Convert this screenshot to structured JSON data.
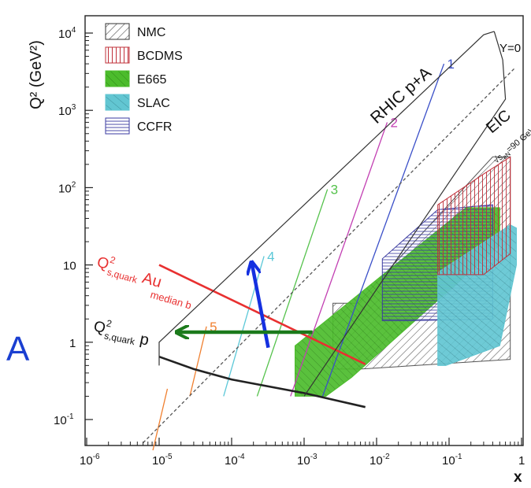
{
  "panel_label": "A",
  "colors": {
    "nmc": "#555555",
    "bcdms": "#c0303a",
    "e665": "#4cbc2c",
    "slac": "#62c6d2",
    "ccfr": "#3a3aa0",
    "au": "#e83030",
    "p": "#222222",
    "blue_arrow": "#1530e0",
    "green_arrow": "#1b7a1b"
  },
  "chart_data": {
    "type": "scatter",
    "title": "",
    "xlabel": "x",
    "ylabel": "Q² (GeV²)",
    "xscale": "log",
    "yscale": "log",
    "xlim": [
      1e-06,
      1
    ],
    "ylim": [
      0.05,
      15000
    ],
    "x_ticks": [
      {
        "base": "10",
        "exp": "-6",
        "value": 1e-06
      },
      {
        "base": "10",
        "exp": "-5",
        "value": 1e-05
      },
      {
        "base": "10",
        "exp": "-4",
        "value": 0.0001
      },
      {
        "base": "10",
        "exp": "-3",
        "value": 0.001
      },
      {
        "base": "10",
        "exp": "-2",
        "value": 0.01
      },
      {
        "base": "10",
        "exp": "-1",
        "value": 0.1
      },
      {
        "base": "1",
        "exp": "",
        "value": 1
      }
    ],
    "y_ticks": [
      {
        "base": "10",
        "exp": "-1",
        "value": 0.1
      },
      {
        "base": "1",
        "exp": "",
        "value": 1
      },
      {
        "base": "10",
        "exp": "",
        "value": 10
      },
      {
        "base": "10",
        "exp": "2",
        "value": 100
      },
      {
        "base": "10",
        "exp": "3",
        "value": 1000
      },
      {
        "base": "10",
        "exp": "4",
        "value": 10000
      }
    ],
    "legend": {
      "placement": "top-left",
      "entries": [
        {
          "key": "nmc",
          "label": "NMC"
        },
        {
          "key": "bcdms",
          "label": "BCDMS"
        },
        {
          "key": "e665",
          "label": "E665"
        },
        {
          "key": "slac",
          "label": "SLAC"
        },
        {
          "key": "ccfr",
          "label": "CCFR"
        }
      ]
    },
    "regions": [
      {
        "key": "nmc",
        "points": [
          [
            0.0025,
            0.45
          ],
          [
            0.0025,
            3.2
          ],
          [
            0.0055,
            3.2
          ],
          [
            0.4,
            250
          ],
          [
            0.7,
            250
          ],
          [
            0.7,
            0.6
          ],
          [
            0.006,
            0.45
          ]
        ]
      },
      {
        "key": "e665",
        "points": [
          [
            0.00075,
            0.2
          ],
          [
            0.00075,
            0.9
          ],
          [
            0.17,
            55
          ],
          [
            0.5,
            55
          ],
          [
            0.5,
            18
          ],
          [
            0.0045,
            0.35
          ],
          [
            0.002,
            0.2
          ]
        ]
      },
      {
        "key": "ccfr",
        "points": [
          [
            0.012,
            1.9
          ],
          [
            0.012,
            12
          ],
          [
            0.07,
            52
          ],
          [
            0.4,
            60
          ],
          [
            0.4,
            2
          ],
          [
            0.03,
            1.9
          ]
        ]
      },
      {
        "key": "slac",
        "points": [
          [
            0.07,
            0.5
          ],
          [
            0.07,
            8
          ],
          [
            0.7,
            33
          ],
          [
            0.85,
            30
          ],
          [
            0.85,
            10
          ],
          [
            0.5,
            0.9
          ],
          [
            0.09,
            0.5
          ]
        ]
      },
      {
        "key": "bcdms",
        "points": [
          [
            0.07,
            7.5
          ],
          [
            0.07,
            60
          ],
          [
            0.3,
            150
          ],
          [
            0.7,
            250
          ],
          [
            0.7,
            14
          ],
          [
            0.3,
            7.5
          ]
        ]
      }
    ],
    "series": [
      {
        "key": "au",
        "name": "Au",
        "points": [
          [
            1e-05,
            10
          ],
          [
            0.007,
            0.52
          ]
        ]
      },
      {
        "key": "p",
        "name": "p",
        "points": [
          [
            1e-05,
            0.65
          ],
          [
            3e-05,
            0.45
          ],
          [
            0.0001,
            0.33
          ],
          [
            0.001,
            0.22
          ],
          [
            0.007,
            0.145
          ]
        ]
      },
      {
        "key": "rhic",
        "name": "",
        "points": [
          [
            1e-05,
            0.5
          ],
          [
            1e-05,
            1
          ],
          [
            0.3,
            9500
          ],
          [
            0.42,
            10500
          ]
        ]
      },
      {
        "key": "rhic_y0",
        "name": "",
        "points": [
          [
            0.42,
            10500
          ],
          [
            0.55,
            4500
          ],
          [
            0.6,
            1400
          ],
          [
            0.001,
            0.2
          ]
        ]
      },
      {
        "key": "eic",
        "name": "",
        "points": [
          [
            6e-06,
            0.05
          ],
          [
            0.8,
            3500
          ]
        ]
      }
    ],
    "rapidity_lines": [
      {
        "label": "1",
        "from": [
          0.0018,
          0.2
        ],
        "to": [
          0.085,
          4000
        ]
      },
      {
        "label": "2",
        "from": [
          0.00065,
          0.2
        ],
        "to": [
          0.014,
          700
        ]
      },
      {
        "label": "3",
        "from": [
          0.000225,
          0.2
        ],
        "to": [
          0.0021,
          95
        ]
      },
      {
        "label": "4",
        "from": [
          7.75e-05,
          0.2
        ],
        "to": [
          0.00028,
          13
        ]
      },
      {
        "label": "5",
        "from": [
          2.65e-05,
          0.2
        ],
        "to": [
          4.5e-05,
          1.6
        ]
      },
      {
        "label": "",
        "from": [
          8.2e-06,
          0.04
        ],
        "to": [
          1.3e-05,
          0.25
        ]
      }
    ],
    "annotations": {
      "rhic_label": "RHIC p+A",
      "y0_label": "Y=0",
      "eic_label": "EIC",
      "eic_sub_sqrt": "√s",
      "eic_sub_sub": "eN",
      "eic_sub_rest": "=90 GeV",
      "au_q": "Q",
      "au_exp": "2",
      "au_sub": "s,quark",
      "au_name": "Au",
      "median_label": "median b",
      "p_q": "Q",
      "p_exp": "2",
      "p_sub": "s,quark",
      "p_name": "p"
    },
    "arrows": [
      {
        "key": "blue_arrow",
        "from": [
          0.00032,
          0.85
        ],
        "to": [
          0.00019,
          10.5
        ]
      },
      {
        "key": "green_arrow",
        "from": [
          0.0013,
          1.35
        ],
        "to": [
          1.8e-05,
          1.35
        ]
      }
    ]
  }
}
